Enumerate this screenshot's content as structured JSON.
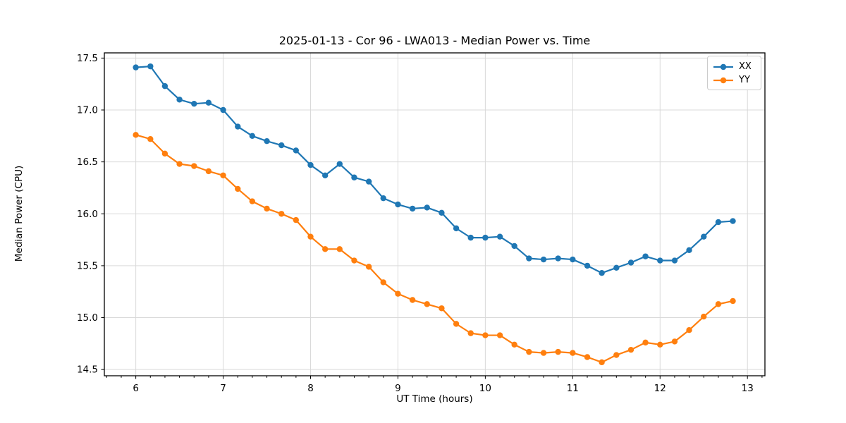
{
  "chart_data": {
    "type": "line",
    "title": "2025-01-13 - Cor 96 - LWA013 - Median Power vs. Time",
    "xlabel": "UT Time (hours)",
    "ylabel": "Median Power (CPU)",
    "xlim": [
      5.64,
      13.2
    ],
    "ylim": [
      14.44,
      17.55
    ],
    "x_ticks": [
      6,
      7,
      8,
      9,
      10,
      11,
      12,
      13
    ],
    "y_ticks": [
      14.5,
      15.0,
      15.5,
      16.0,
      16.5,
      17.0,
      17.5
    ],
    "x_minor_step": 0.16667,
    "grid": true,
    "grid_color": "#d9d9d9",
    "legend_position": "upper right",
    "x": [
      6.0,
      6.167,
      6.333,
      6.5,
      6.667,
      6.833,
      7.0,
      7.167,
      7.333,
      7.5,
      7.667,
      7.833,
      8.0,
      8.167,
      8.333,
      8.5,
      8.667,
      8.833,
      9.0,
      9.167,
      9.333,
      9.5,
      9.667,
      9.833,
      10.0,
      10.167,
      10.333,
      10.5,
      10.667,
      10.833,
      11.0,
      11.167,
      11.333,
      11.5,
      11.667,
      11.833,
      12.0,
      12.167,
      12.333,
      12.5,
      12.667,
      12.833
    ],
    "series": [
      {
        "name": "XX",
        "color": "#1f77b4",
        "values": [
          17.41,
          17.42,
          17.23,
          17.1,
          17.06,
          17.07,
          17.0,
          16.84,
          16.75,
          16.7,
          16.66,
          16.61,
          16.47,
          16.37,
          16.48,
          16.35,
          16.31,
          16.15,
          16.09,
          16.05,
          16.06,
          16.01,
          15.86,
          15.77,
          15.77,
          15.78,
          15.69,
          15.57,
          15.56,
          15.57,
          15.56,
          15.5,
          15.43,
          15.48,
          15.53,
          15.59,
          15.55,
          15.55,
          15.65,
          15.78,
          15.92,
          15.93
        ]
      },
      {
        "name": "YY",
        "color": "#ff7f0e",
        "values": [
          16.76,
          16.72,
          16.58,
          16.48,
          16.46,
          16.41,
          16.37,
          16.24,
          16.12,
          16.05,
          16.0,
          15.94,
          15.78,
          15.66,
          15.66,
          15.55,
          15.49,
          15.34,
          15.23,
          15.17,
          15.13,
          15.09,
          14.94,
          14.85,
          14.83,
          14.83,
          14.74,
          14.67,
          14.66,
          14.67,
          14.66,
          14.62,
          14.57,
          14.64,
          14.69,
          14.76,
          14.74,
          14.77,
          14.88,
          15.01,
          15.13,
          15.16
        ]
      }
    ]
  }
}
